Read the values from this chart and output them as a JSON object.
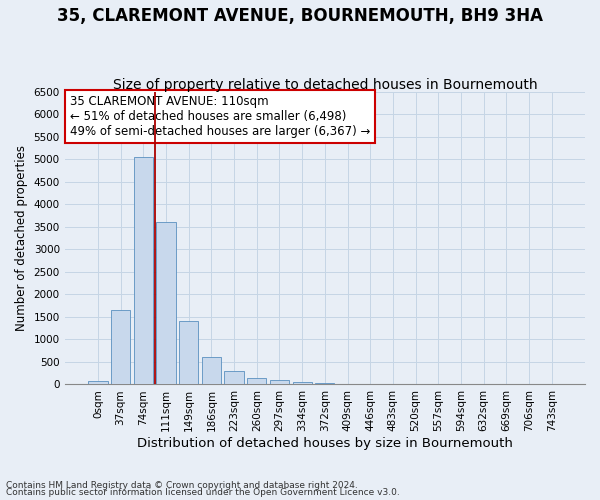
{
  "title": "35, CLAREMONT AVENUE, BOURNEMOUTH, BH9 3HA",
  "subtitle": "Size of property relative to detached houses in Bournemouth",
  "xlabel": "Distribution of detached houses by size in Bournemouth",
  "ylabel": "Number of detached properties",
  "footnote1": "Contains HM Land Registry data © Crown copyright and database right 2024.",
  "footnote2": "Contains public sector information licensed under the Open Government Licence v3.0.",
  "bar_labels": [
    "0sqm",
    "37sqm",
    "74sqm",
    "111sqm",
    "149sqm",
    "186sqm",
    "223sqm",
    "260sqm",
    "297sqm",
    "334sqm",
    "372sqm",
    "409sqm",
    "446sqm",
    "483sqm",
    "520sqm",
    "557sqm",
    "594sqm",
    "632sqm",
    "669sqm",
    "706sqm",
    "743sqm"
  ],
  "bar_values": [
    70,
    1650,
    5060,
    3600,
    1410,
    620,
    300,
    135,
    90,
    55,
    35,
    20,
    15,
    8,
    5,
    4,
    3,
    2,
    2,
    2,
    5
  ],
  "bar_color": "#c8d8ec",
  "bar_edge_color": "#5a90c0",
  "ylim": [
    0,
    6500
  ],
  "yticks": [
    0,
    500,
    1000,
    1500,
    2000,
    2500,
    3000,
    3500,
    4000,
    4500,
    5000,
    5500,
    6000,
    6500
  ],
  "vline_color": "#aa0000",
  "vline_bar_index": 3,
  "annotation_title": "35 CLAREMONT AVENUE: 110sqm",
  "annotation_line1": "← 51% of detached houses are smaller (6,498)",
  "annotation_line2": "49% of semi-detached houses are larger (6,367) →",
  "annotation_box_color": "#ffffff",
  "annotation_box_edge": "#cc0000",
  "grid_color": "#c5d5e5",
  "background_color": "#e8eef6",
  "title_fontsize": 12,
  "subtitle_fontsize": 10,
  "xlabel_fontsize": 9.5,
  "ylabel_fontsize": 8.5,
  "tick_fontsize": 7.5,
  "annotation_fontsize": 8.5
}
